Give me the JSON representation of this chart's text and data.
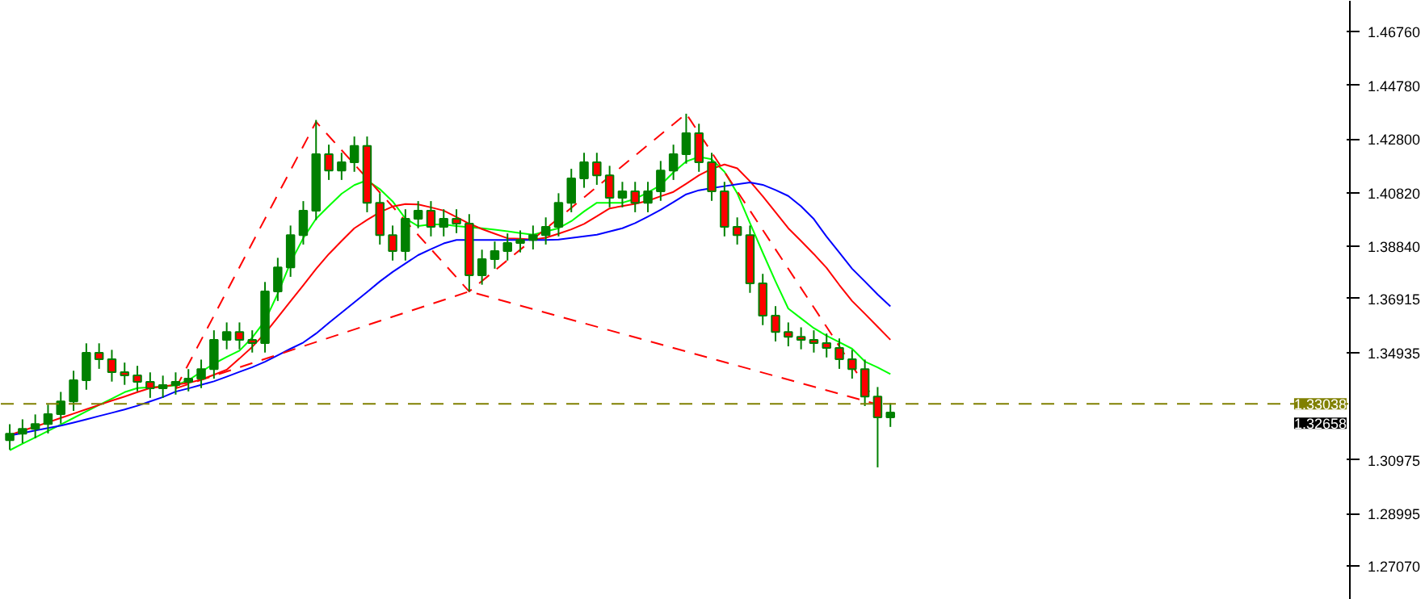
{
  "chart_data": {
    "type": "candlestick",
    "color": "#008000",
    "categories": [
      null,
      null,
      null,
      null,
      null,
      null,
      null,
      null,
      null,
      null,
      null,
      null,
      null,
      null,
      null,
      null,
      null,
      null,
      null,
      null,
      null,
      null,
      null,
      null,
      null,
      null,
      null,
      null,
      null,
      null,
      null,
      null,
      null,
      null,
      null,
      null,
      null,
      null,
      null,
      null,
      null,
      null,
      null,
      null,
      null,
      null,
      null,
      null,
      null,
      null,
      null,
      null,
      null,
      null,
      null,
      null,
      null,
      null,
      null,
      null,
      null,
      null,
      null,
      null,
      null,
      null,
      null,
      null,
      null,
      null
    ],
    "ohlc": [
      [
        1.317,
        1.3229,
        1.3135,
        1.3194
      ],
      [
        1.3194,
        1.3247,
        1.3159,
        1.3212
      ],
      [
        1.3212,
        1.3265,
        1.3177,
        1.323
      ],
      [
        1.323,
        1.3301,
        1.3195,
        1.3266
      ],
      [
        1.3266,
        1.3348,
        1.3231,
        1.3313
      ],
      [
        1.3313,
        1.3426,
        1.3278,
        1.3391
      ],
      [
        1.3391,
        1.3527,
        1.3356,
        1.3492
      ],
      [
        1.3492,
        1.3527,
        1.3433,
        1.3468
      ],
      [
        1.3468,
        1.3503,
        1.3386,
        1.3421
      ],
      [
        1.3421,
        1.3456,
        1.3374,
        1.3409
      ],
      [
        1.3409,
        1.3444,
        1.335,
        1.3385
      ],
      [
        1.3385,
        1.342,
        1.3326,
        1.3361
      ],
      [
        1.3361,
        1.3408,
        1.3326,
        1.3373
      ],
      [
        1.3373,
        1.342,
        1.3338,
        1.3385
      ],
      [
        1.3385,
        1.3432,
        1.335,
        1.3397
      ],
      [
        1.3397,
        1.3467,
        1.3362,
        1.3432
      ],
      [
        1.3432,
        1.3575,
        1.3397,
        1.354
      ],
      [
        1.354,
        1.3604,
        1.3505,
        1.3569
      ],
      [
        1.3569,
        1.3604,
        1.3505,
        1.354
      ],
      [
        1.354,
        1.3575,
        1.3493,
        1.3528
      ],
      [
        1.3528,
        1.3753,
        1.3493,
        1.3718
      ],
      [
        1.3718,
        1.3842,
        1.3683,
        1.3807
      ],
      [
        1.3807,
        1.3961,
        1.3772,
        1.3926
      ],
      [
        1.3926,
        1.4051,
        1.3891,
        1.4016
      ],
      [
        1.4016,
        1.435,
        1.3981,
        1.4224
      ],
      [
        1.4224,
        1.4259,
        1.4129,
        1.4164
      ],
      [
        1.4164,
        1.4229,
        1.4129,
        1.4194
      ],
      [
        1.4194,
        1.4289,
        1.4159,
        1.4254
      ],
      [
        1.4254,
        1.4289,
        1.401,
        1.4045
      ],
      [
        1.4045,
        1.408,
        1.3891,
        1.3926
      ],
      [
        1.3926,
        1.3961,
        1.3832,
        1.3867
      ],
      [
        1.3867,
        1.4021,
        1.3832,
        1.3986
      ],
      [
        1.3986,
        1.4051,
        1.3951,
        1.4016
      ],
      [
        1.4016,
        1.4051,
        1.3921,
        1.3956
      ],
      [
        1.3956,
        1.4021,
        1.3921,
        1.3986
      ],
      [
        1.3986,
        1.4021,
        1.3933,
        1.3968
      ],
      [
        1.3968,
        1.4003,
        1.3718,
        1.3778
      ],
      [
        1.3778,
        1.3872,
        1.3743,
        1.3837
      ],
      [
        1.3837,
        1.3902,
        1.3802,
        1.3867
      ],
      [
        1.3867,
        1.3932,
        1.3832,
        1.3897
      ],
      [
        1.3897,
        1.3943,
        1.3862,
        1.3908
      ],
      [
        1.3908,
        1.3961,
        1.3873,
        1.3926
      ],
      [
        1.3926,
        1.3991,
        1.3891,
        1.3956
      ],
      [
        1.3956,
        1.408,
        1.3921,
        1.4045
      ],
      [
        1.4045,
        1.417,
        1.401,
        1.4135
      ],
      [
        1.4135,
        1.4229,
        1.41,
        1.4194
      ],
      [
        1.4194,
        1.4229,
        1.4111,
        1.4146
      ],
      [
        1.4146,
        1.4181,
        1.4028,
        1.4063
      ],
      [
        1.4063,
        1.4122,
        1.4028,
        1.4087
      ],
      [
        1.4087,
        1.4122,
        1.401,
        1.4045
      ],
      [
        1.4045,
        1.4122,
        1.401,
        1.4087
      ],
      [
        1.4087,
        1.4199,
        1.4052,
        1.4164
      ],
      [
        1.4164,
        1.4259,
        1.4129,
        1.4224
      ],
      [
        1.4224,
        1.4373,
        1.4189,
        1.4301
      ],
      [
        1.4301,
        1.4336,
        1.4159,
        1.4194
      ],
      [
        1.4194,
        1.4229,
        1.4052,
        1.4087
      ],
      [
        1.4087,
        1.4122,
        1.3921,
        1.3956
      ],
      [
        1.3956,
        1.3991,
        1.3891,
        1.3926
      ],
      [
        1.3926,
        1.3961,
        1.3713,
        1.3748
      ],
      [
        1.3748,
        1.3783,
        1.3594,
        1.3629
      ],
      [
        1.3629,
        1.3664,
        1.3534,
        1.3569
      ],
      [
        1.3569,
        1.3604,
        1.3516,
        1.3551
      ],
      [
        1.3551,
        1.3586,
        1.3505,
        1.354
      ],
      [
        1.354,
        1.3575,
        1.3493,
        1.3528
      ],
      [
        1.3528,
        1.3563,
        1.3475,
        1.351
      ],
      [
        1.351,
        1.3545,
        1.3433,
        1.3468
      ],
      [
        1.3468,
        1.3503,
        1.3397,
        1.3432
      ],
      [
        1.3432,
        1.3467,
        1.3296,
        1.3331
      ],
      [
        1.3331,
        1.3366,
        1.307,
        1.3254
      ],
      [
        1.3254,
        1.3307,
        1.3219,
        1.3272
      ]
    ],
    "series": [
      {
        "type": "line",
        "color": "#00ff00",
        "values": [
          1.3133,
          1.3157,
          1.318,
          1.3204,
          1.3228,
          1.3252,
          1.3276,
          1.33,
          1.3323,
          1.3347,
          1.3362,
          1.3365,
          1.3368,
          1.3372,
          1.3391,
          1.3422,
          1.3452,
          1.3477,
          1.35,
          1.3548,
          1.361,
          1.371,
          1.3825,
          1.3915,
          1.3986,
          1.4033,
          1.4078,
          1.411,
          1.4128,
          1.4095,
          1.405,
          1.3987,
          1.3959,
          1.3965,
          1.3965,
          1.3959,
          1.3955,
          1.3951,
          1.3946,
          1.394,
          1.3933,
          1.3927,
          1.3939,
          1.3951,
          1.3977,
          1.4013,
          1.4045,
          1.4045,
          1.4045,
          1.4059,
          1.4083,
          1.411,
          1.4157,
          1.4197,
          1.4214,
          1.4205,
          1.4159,
          1.408,
          1.397,
          1.3861,
          1.3755,
          1.3655,
          1.3619,
          1.3583,
          1.3555,
          1.3531,
          1.3507,
          1.346,
          1.3438,
          1.3414
        ]
      },
      {
        "type": "line",
        "color": "#ff0000",
        "values": [
          1.3189,
          1.3205,
          1.322,
          1.3236,
          1.3252,
          1.3268,
          1.3284,
          1.33,
          1.3316,
          1.3331,
          1.3347,
          1.3362,
          1.3368,
          1.3375,
          1.3381,
          1.3393,
          1.3411,
          1.343,
          1.3471,
          1.3514,
          1.3564,
          1.3623,
          1.3682,
          1.3741,
          1.3801,
          1.3856,
          1.3904,
          1.3951,
          1.3982,
          1.401,
          1.4031,
          1.404,
          1.4039,
          1.4028,
          1.4016,
          1.3992,
          1.3968,
          1.3948,
          1.3931,
          1.3914,
          1.3912,
          1.3909,
          1.3916,
          1.3931,
          1.3947,
          1.3967,
          1.3995,
          1.4024,
          1.4033,
          1.4041,
          1.4052,
          1.4069,
          1.4085,
          1.4115,
          1.4146,
          1.417,
          1.4186,
          1.4172,
          1.4124,
          1.4069,
          1.401,
          1.3951,
          1.3904,
          1.3856,
          1.3805,
          1.3742,
          1.3683,
          1.3636,
          1.3588,
          1.354
        ]
      },
      {
        "type": "line",
        "color": "#0000ff",
        "values": [
          1.3187,
          1.3196,
          1.3206,
          1.3215,
          1.3224,
          1.3235,
          1.3247,
          1.3259,
          1.3271,
          1.3283,
          1.3297,
          1.3313,
          1.3329,
          1.3349,
          1.3361,
          1.3374,
          1.3387,
          1.3404,
          1.3422,
          1.3439,
          1.3459,
          1.3483,
          1.3507,
          1.353,
          1.3563,
          1.3602,
          1.364,
          1.3678,
          1.3716,
          1.3755,
          1.379,
          1.3821,
          1.3852,
          1.3874,
          1.3895,
          1.3908,
          1.3908,
          1.3908,
          1.3908,
          1.3908,
          1.3908,
          1.3908,
          1.3908,
          1.3909,
          1.3915,
          1.3921,
          1.3927,
          1.3939,
          1.3951,
          1.397,
          1.3994,
          1.4019,
          1.4047,
          1.4076,
          1.4091,
          1.4099,
          1.4106,
          1.4113,
          1.412,
          1.4111,
          1.4092,
          1.407,
          1.4032,
          1.3985,
          1.392,
          1.3861,
          1.3802,
          1.3755,
          1.3707,
          1.3663
        ]
      },
      {
        "type": "line",
        "color": "#ff0000",
        "line_style": "dashed",
        "values": [
          null,
          null,
          null,
          null,
          null,
          null,
          null,
          null,
          null,
          null,
          null,
          null,
          null,
          1.3361,
          null,
          null,
          null,
          null,
          null,
          null,
          null,
          null,
          null,
          null,
          1.4343,
          null,
          null,
          null,
          null,
          null,
          null,
          null,
          null,
          null,
          null,
          null,
          1.3718,
          null,
          null,
          null,
          null,
          null,
          null,
          null,
          null,
          null,
          null,
          null,
          null,
          null,
          null,
          null,
          null,
          1.4373,
          null,
          null,
          null,
          null,
          null,
          null,
          null,
          null,
          null,
          null,
          null,
          null,
          null,
          null,
          1.3302,
          null
        ]
      },
      {
        "type": "line",
        "color": "#ff0000",
        "line_style": "dashed",
        "values": [
          null,
          null,
          null,
          null,
          null,
          null,
          null,
          null,
          null,
          null,
          null,
          null,
          null,
          1.3361,
          null,
          null,
          null,
          null,
          null,
          null,
          null,
          null,
          null,
          null,
          null,
          null,
          null,
          null,
          null,
          null,
          null,
          null,
          null,
          null,
          null,
          null,
          1.3718,
          null,
          null,
          null,
          null,
          null,
          null,
          null,
          null,
          null,
          null,
          null,
          null,
          null,
          null,
          null,
          null,
          null,
          null,
          null,
          null,
          null,
          null,
          null,
          null,
          null,
          null,
          null,
          null,
          null,
          null,
          null,
          1.3302,
          null
        ]
      }
    ],
    "ylim": [
      1.2582,
      1.4789
    ],
    "yticks": [
      {
        "value": 1.4676,
        "label": "1.46760"
      },
      {
        "value": 1.4478,
        "label": "1.44780"
      },
      {
        "value": 1.428,
        "label": "1.42800"
      },
      {
        "value": 1.4082,
        "label": "1.40820"
      },
      {
        "value": 1.3884,
        "label": "1.38840"
      },
      {
        "value": 1.36915,
        "label": "1.36915"
      },
      {
        "value": 1.34935,
        "label": "1.34935"
      },
      {
        "value": 1.30975,
        "label": "1.30975"
      },
      {
        "value": 1.28995,
        "label": "1.28995"
      },
      {
        "value": 1.2707,
        "label": "1.27070"
      }
    ],
    "tick_labels": "y",
    "ref_lines": [
      {
        "axis": "y",
        "value": 1.33038,
        "label": "1.33038",
        "color": "#808000",
        "line_style": "dashed"
      }
    ],
    "annotations": [
      "1.32658"
    ],
    "colors": [
      "#008000",
      "#008000",
      "#008000",
      "#008000",
      "#008000",
      "#008000",
      "#008000",
      "#ff0000",
      "#ff0000",
      "#ff0000",
      "#ff0000",
      "#ff0000",
      "#008000",
      "#008000",
      "#008000",
      "#008000",
      "#008000",
      "#008000",
      "#ff0000",
      "#ff0000",
      "#008000",
      "#008000",
      "#008000",
      "#008000",
      "#008000",
      "#ff0000",
      "#008000",
      "#008000",
      "#ff0000",
      "#ff0000",
      "#ff0000",
      "#008000",
      "#008000",
      "#ff0000",
      "#008000",
      "#ff0000",
      "#ff0000",
      "#008000",
      "#008000",
      "#008000",
      "#008000",
      "#008000",
      "#008000",
      "#008000",
      "#008000",
      "#008000",
      "#ff0000",
      "#ff0000",
      "#008000",
      "#ff0000",
      "#008000",
      "#008000",
      "#008000",
      "#008000",
      "#ff0000",
      "#ff0000",
      "#ff0000",
      "#ff0000",
      "#ff0000",
      "#ff0000",
      "#ff0000",
      "#ff0000",
      "#ff0000",
      "#ff0000",
      "#ff0000",
      "#ff0000",
      "#ff0000",
      "#ff0000",
      "#ff0000",
      "#008000"
    ]
  }
}
